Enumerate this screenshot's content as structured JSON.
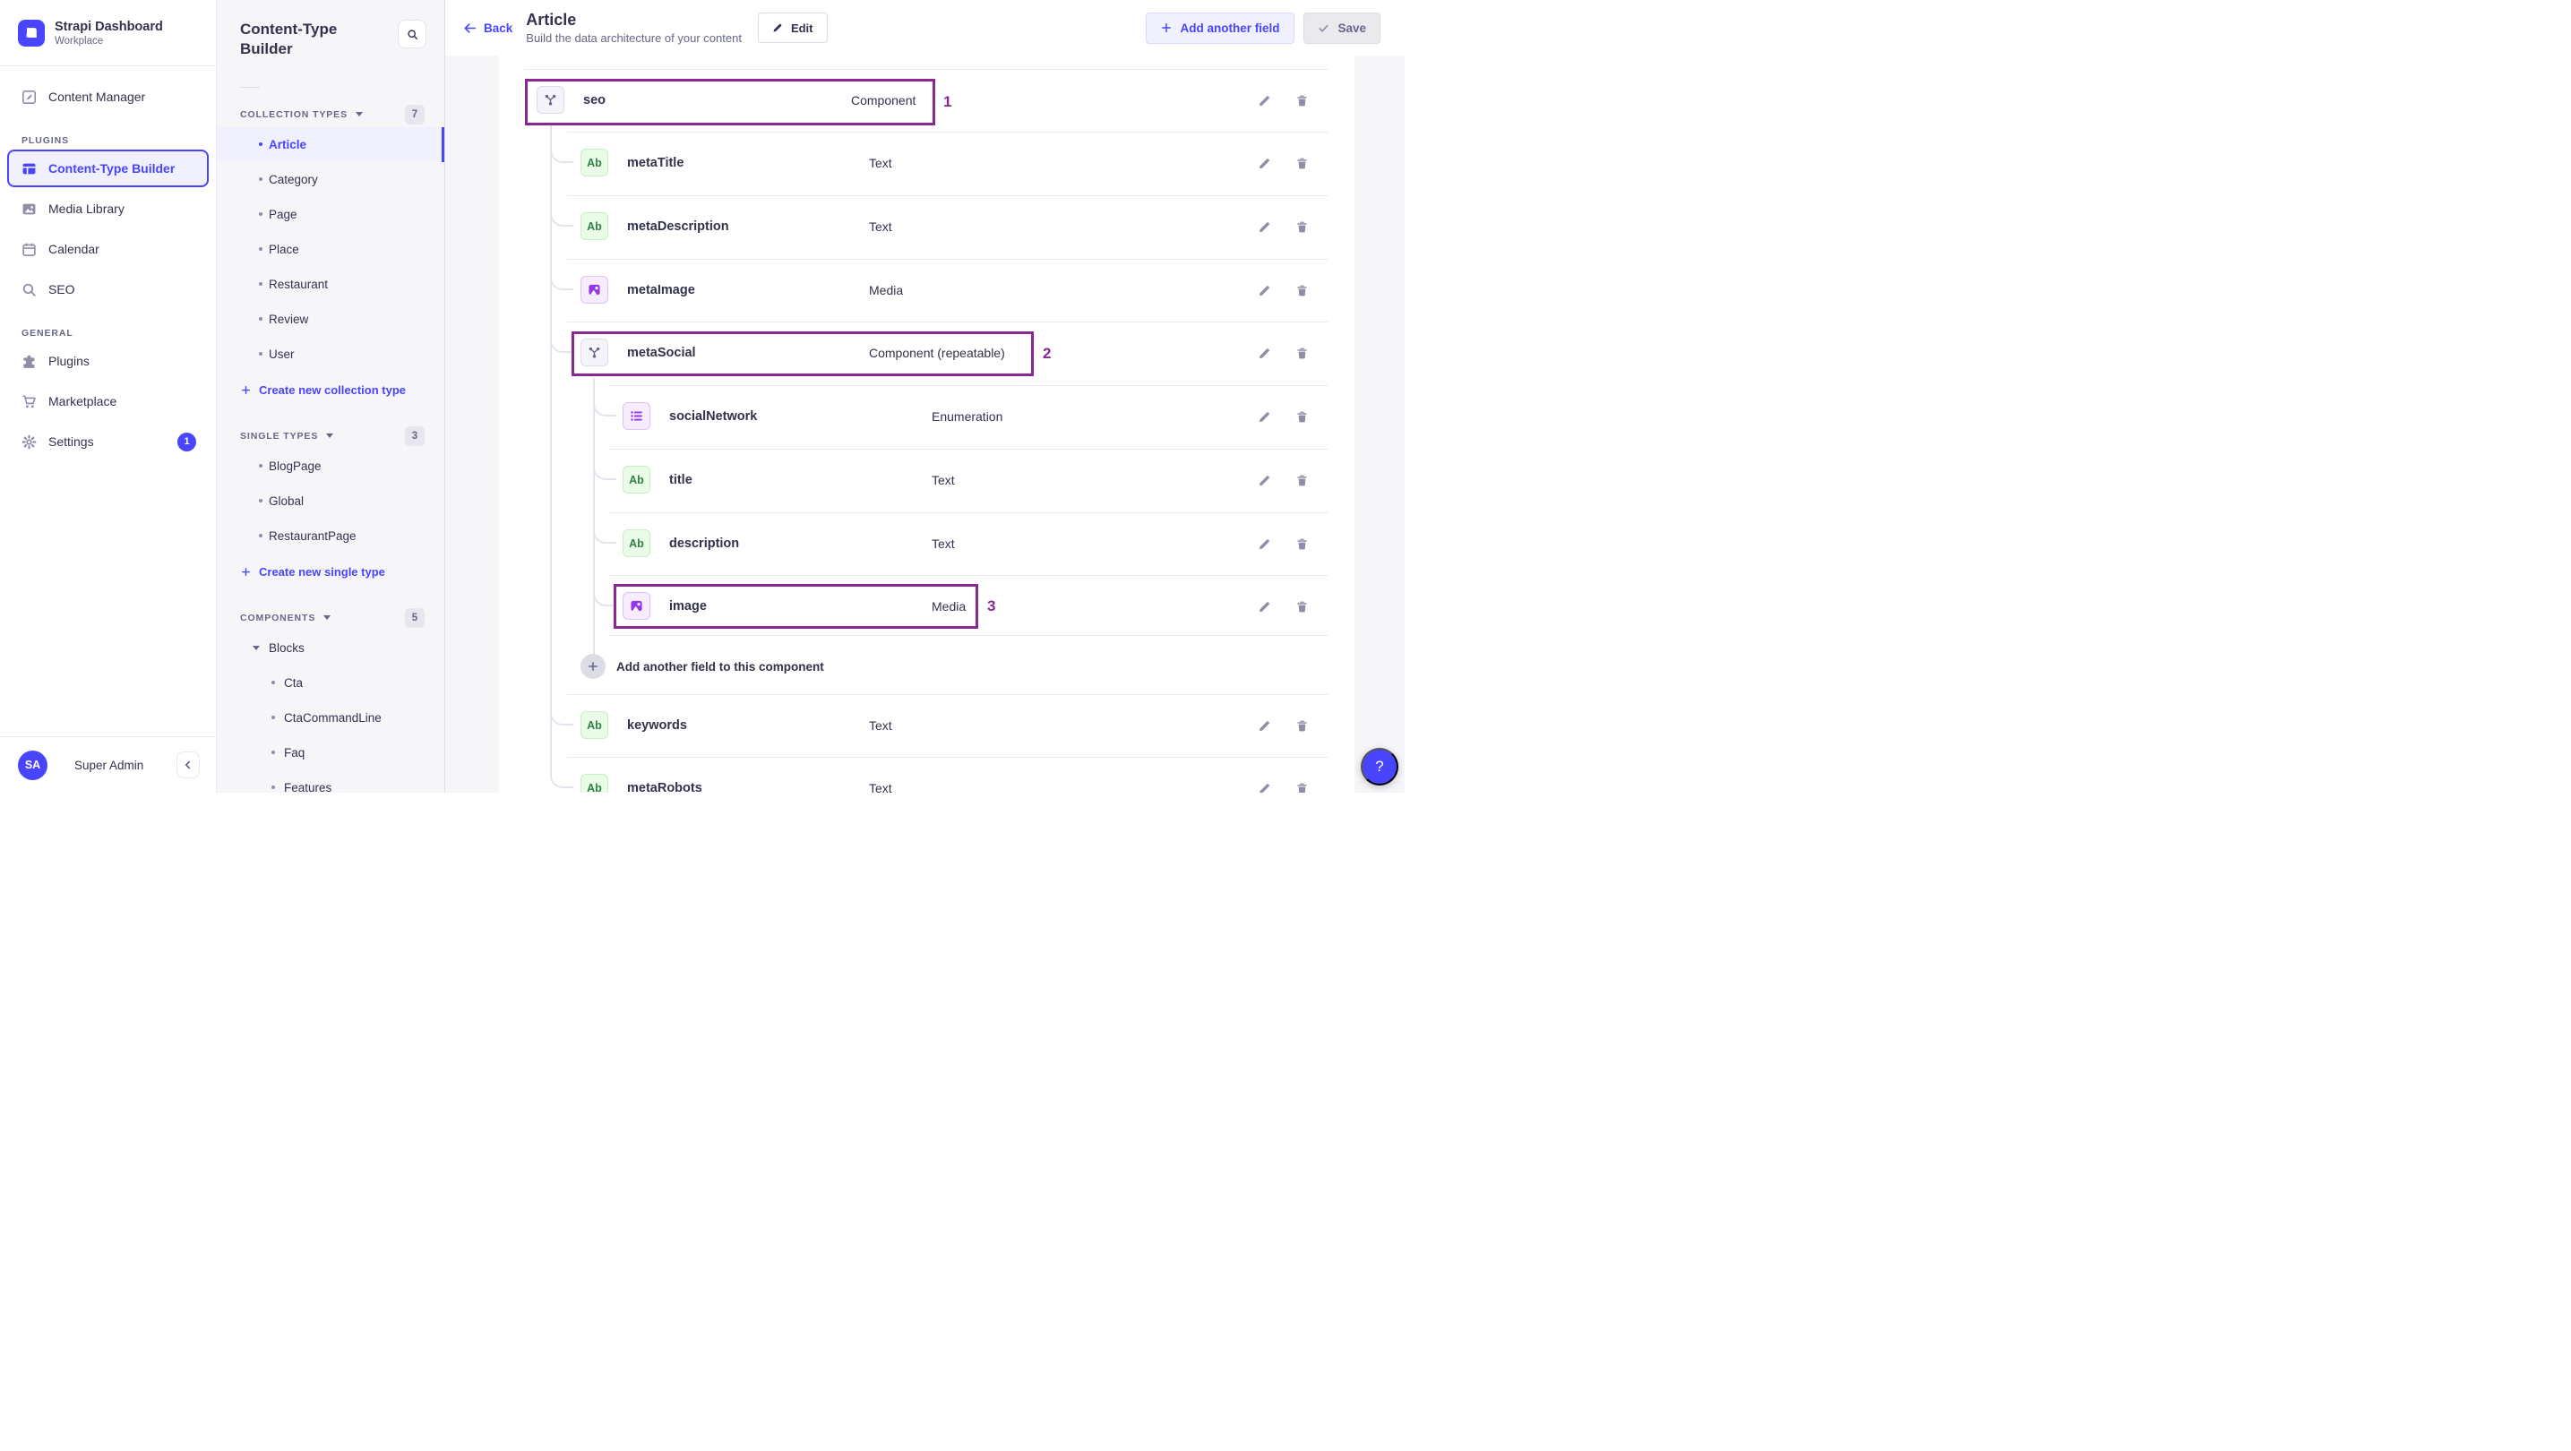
{
  "colors": {
    "primary": "#4945ff",
    "annotation": "#8a2793",
    "active_bg": "#f0f0ff"
  },
  "brand": {
    "name": "Strapi Dashboard",
    "workspace": "Workplace"
  },
  "sidebar": {
    "primary_item": {
      "label": "Content Manager",
      "icon": "pen-square"
    },
    "sections": [
      {
        "label": "PLUGINS",
        "items": [
          {
            "label": "Content-Type Builder",
            "icon": "layout",
            "active": true
          },
          {
            "label": "Media Library",
            "icon": "picture"
          },
          {
            "label": "Calendar",
            "icon": "calendar"
          },
          {
            "label": "SEO",
            "icon": "search"
          }
        ]
      },
      {
        "label": "GENERAL",
        "items": [
          {
            "label": "Plugins",
            "icon": "puzzle"
          },
          {
            "label": "Marketplace",
            "icon": "cart"
          },
          {
            "label": "Settings",
            "icon": "gear",
            "badge": "1"
          }
        ]
      }
    ],
    "user": {
      "initials": "SA",
      "name": "Super Admin"
    }
  },
  "panel": {
    "title": "Content-Type Builder",
    "groups": [
      {
        "label": "COLLECTION TYPES",
        "count": "7",
        "items": [
          {
            "label": "Article",
            "active": true
          },
          {
            "label": "Category"
          },
          {
            "label": "Page"
          },
          {
            "label": "Place"
          },
          {
            "label": "Restaurant"
          },
          {
            "label": "Review"
          },
          {
            "label": "User"
          }
        ],
        "action": "Create new collection type"
      },
      {
        "label": "SINGLE TYPES",
        "count": "3",
        "items": [
          {
            "label": "BlogPage"
          },
          {
            "label": "Global"
          },
          {
            "label": "RestaurantPage"
          }
        ],
        "action": "Create new single type"
      },
      {
        "label": "COMPONENTS",
        "count": "5",
        "category": {
          "label": "Blocks",
          "items": [
            {
              "label": "Cta"
            },
            {
              "label": "CtaCommandLine"
            },
            {
              "label": "Faq"
            },
            {
              "label": "Features"
            }
          ]
        }
      }
    ]
  },
  "header": {
    "back": "Back",
    "title": "Article",
    "subtitle": "Build the data architecture of your content",
    "edit": "Edit",
    "add_field": "Add another field",
    "save": "Save"
  },
  "fields": [
    {
      "name": "seo",
      "type": "Component",
      "icon": "component",
      "level": 0,
      "annotation": "1"
    },
    {
      "name": "metaTitle",
      "type": "Text",
      "icon": "text",
      "level": 1
    },
    {
      "name": "metaDescription",
      "type": "Text",
      "icon": "text",
      "level": 1
    },
    {
      "name": "metaImage",
      "type": "Media",
      "icon": "media",
      "level": 1
    },
    {
      "name": "metaSocial",
      "type": "Component (repeatable)",
      "icon": "component",
      "level": 1,
      "annotation": "2"
    },
    {
      "name": "socialNetwork",
      "type": "Enumeration",
      "icon": "enumeration",
      "level": 2
    },
    {
      "name": "title",
      "type": "Text",
      "icon": "text",
      "level": 2
    },
    {
      "name": "description",
      "type": "Text",
      "icon": "text",
      "level": 2
    },
    {
      "name": "image",
      "type": "Media",
      "icon": "media",
      "level": 2,
      "annotation": "3"
    },
    {
      "kind": "add",
      "label": "Add another field to this component",
      "level": 2
    },
    {
      "name": "keywords",
      "type": "Text",
      "icon": "text",
      "level": 1
    },
    {
      "name": "metaRobots",
      "type": "Text",
      "icon": "text",
      "level": 1
    }
  ],
  "help_label": "?"
}
